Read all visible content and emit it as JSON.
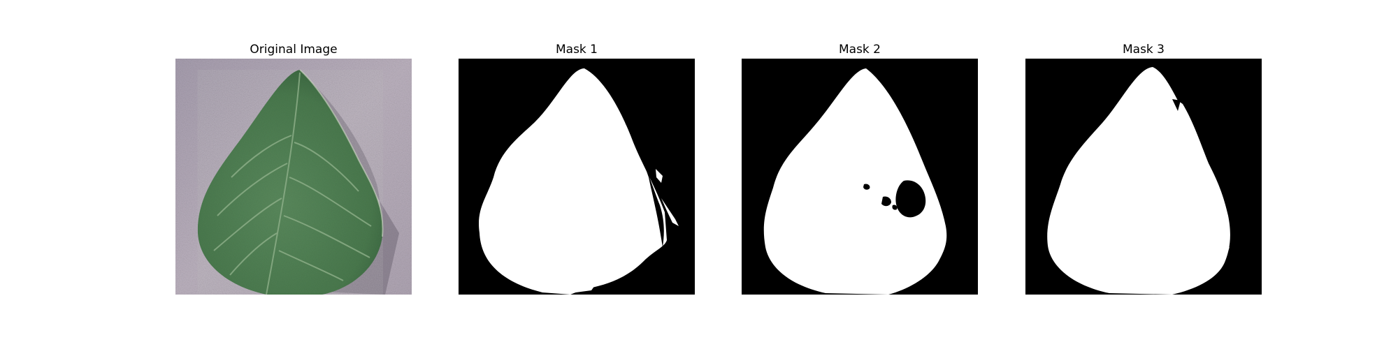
{
  "panels": [
    {
      "title": "Original Image",
      "kind": "photo"
    },
    {
      "title": "Mask 1",
      "kind": "mask"
    },
    {
      "title": "Mask 2",
      "kind": "mask"
    },
    {
      "title": "Mask 3",
      "kind": "mask"
    }
  ],
  "colors": {
    "background": "#ffffff",
    "mask_background": "#000000",
    "mask_foreground": "#ffffff",
    "photo_backdrop": "#b4aab6",
    "leaf_green": "#4f7c52",
    "leaf_dark": "#2f5534",
    "leaf_vein": "#8fb08a",
    "leaf_shadow": "#5e5660"
  }
}
